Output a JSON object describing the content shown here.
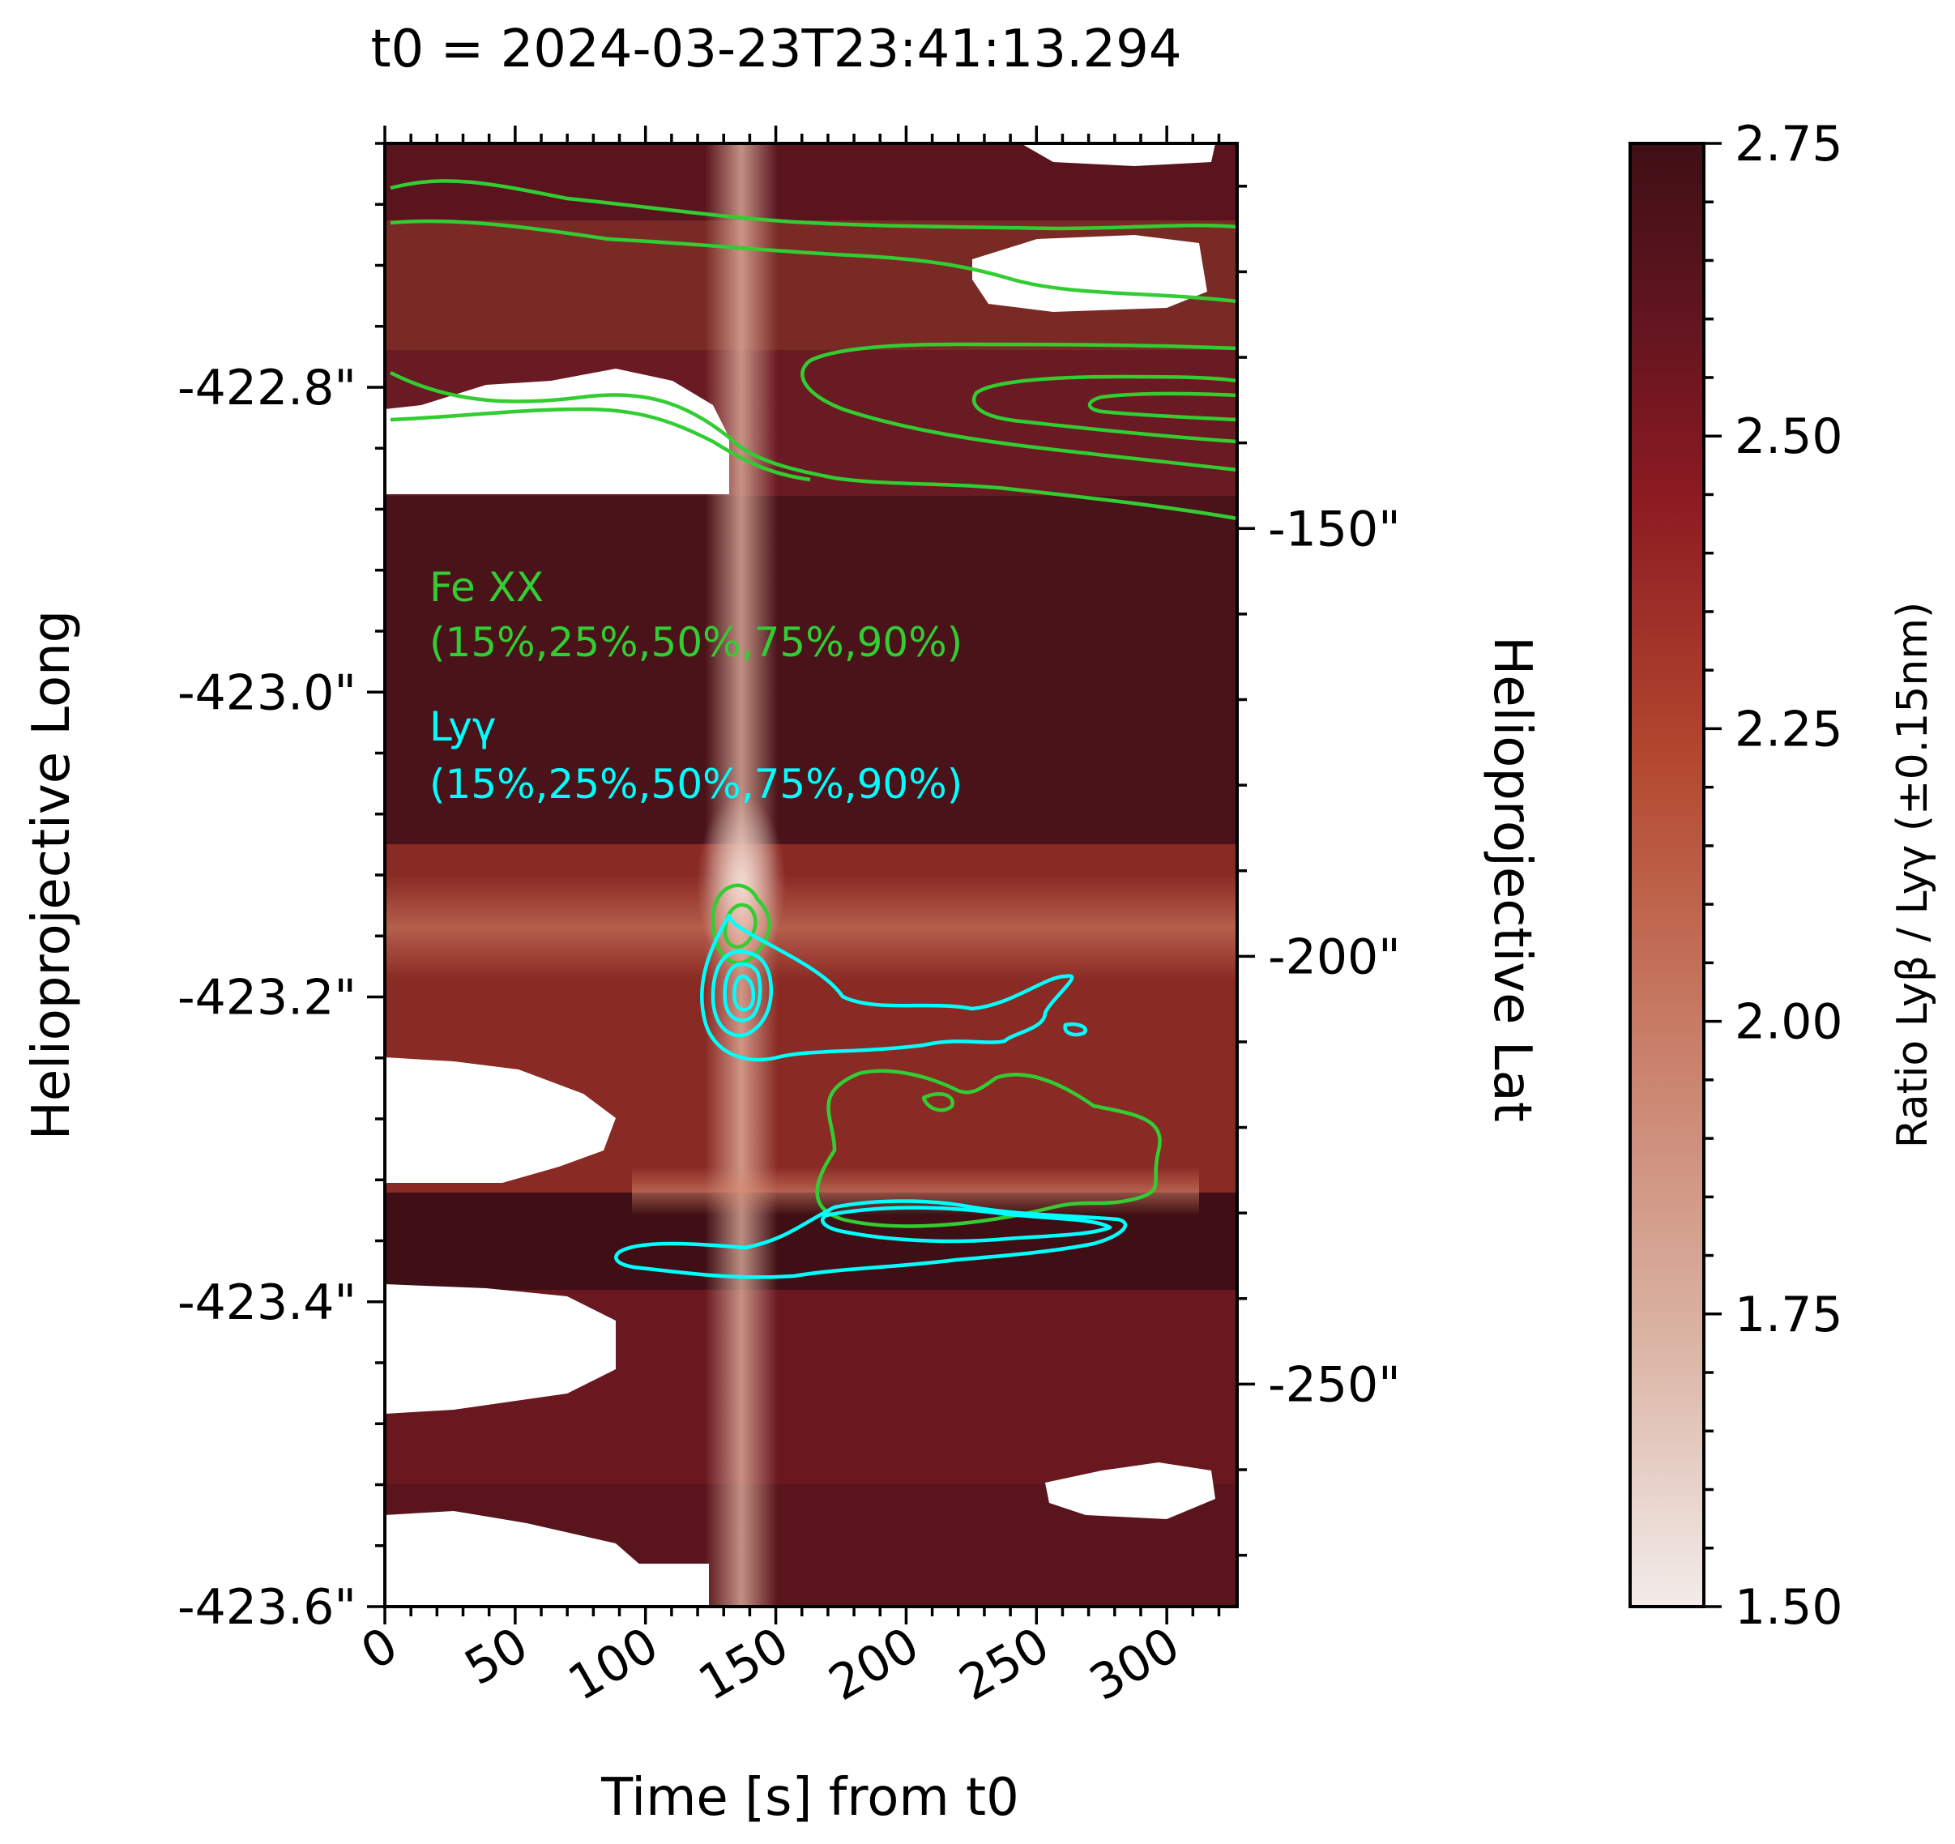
{
  "chart_data": {
    "type": "heatmap",
    "title": "t0 = 2024-03-23T23:41:13.294",
    "xlabel": "Time [s] from t0",
    "ylabel_left": "Helioprojective Long",
    "ylabel_right": "Helioprojective Lat",
    "xlim": [
      0,
      327
    ],
    "x_ticks": [
      0,
      50,
      100,
      150,
      200,
      250,
      300
    ],
    "x_tick_labels": [
      "0",
      "50",
      "100",
      "150",
      "200",
      "250",
      "300"
    ],
    "ylim_left": [
      -423.6,
      -422.64
    ],
    "y_left_ticks": [
      -422.8,
      -423.0,
      -423.2,
      -423.4,
      -423.6
    ],
    "y_left_tick_labels": [
      "-422.8\"",
      "-423.0\"",
      "-423.2\"",
      "-423.4\"",
      "-423.6\""
    ],
    "ylim_right": [
      -276,
      -105
    ],
    "y_right_ticks": [
      -150,
      -200,
      -250
    ],
    "y_right_tick_labels": [
      "-150\"",
      "-200\"",
      "-250\""
    ],
    "colorbar": {
      "label": "Ratio Lyβ / Lyγ (±0.15nm)",
      "range": [
        1.5,
        2.75
      ],
      "ticks": [
        1.5,
        1.75,
        2.0,
        2.25,
        2.5,
        2.75
      ],
      "tick_labels": [
        "1.50",
        "1.75",
        "2.00",
        "2.25",
        "2.50",
        "2.75"
      ],
      "colors": [
        "#f2ecea",
        "#dcb7a8",
        "#c9806a",
        "#b3482f",
        "#8c1a22",
        "#621520",
        "#3f0f15"
      ]
    },
    "legend": [
      {
        "name": "Fe XX",
        "levels": "(15%,25%,50%,75%,90%)",
        "color": "#32cd32"
      },
      {
        "name": "Lyγ",
        "levels": "(15%,25%,50%,75%,90%)",
        "color": "#00ffff"
      }
    ],
    "features": {
      "bright_column_time_s": 135,
      "bright_row_long": -423.17,
      "lyg_kernel": {
        "time_s": 138,
        "long": -423.2
      }
    }
  }
}
